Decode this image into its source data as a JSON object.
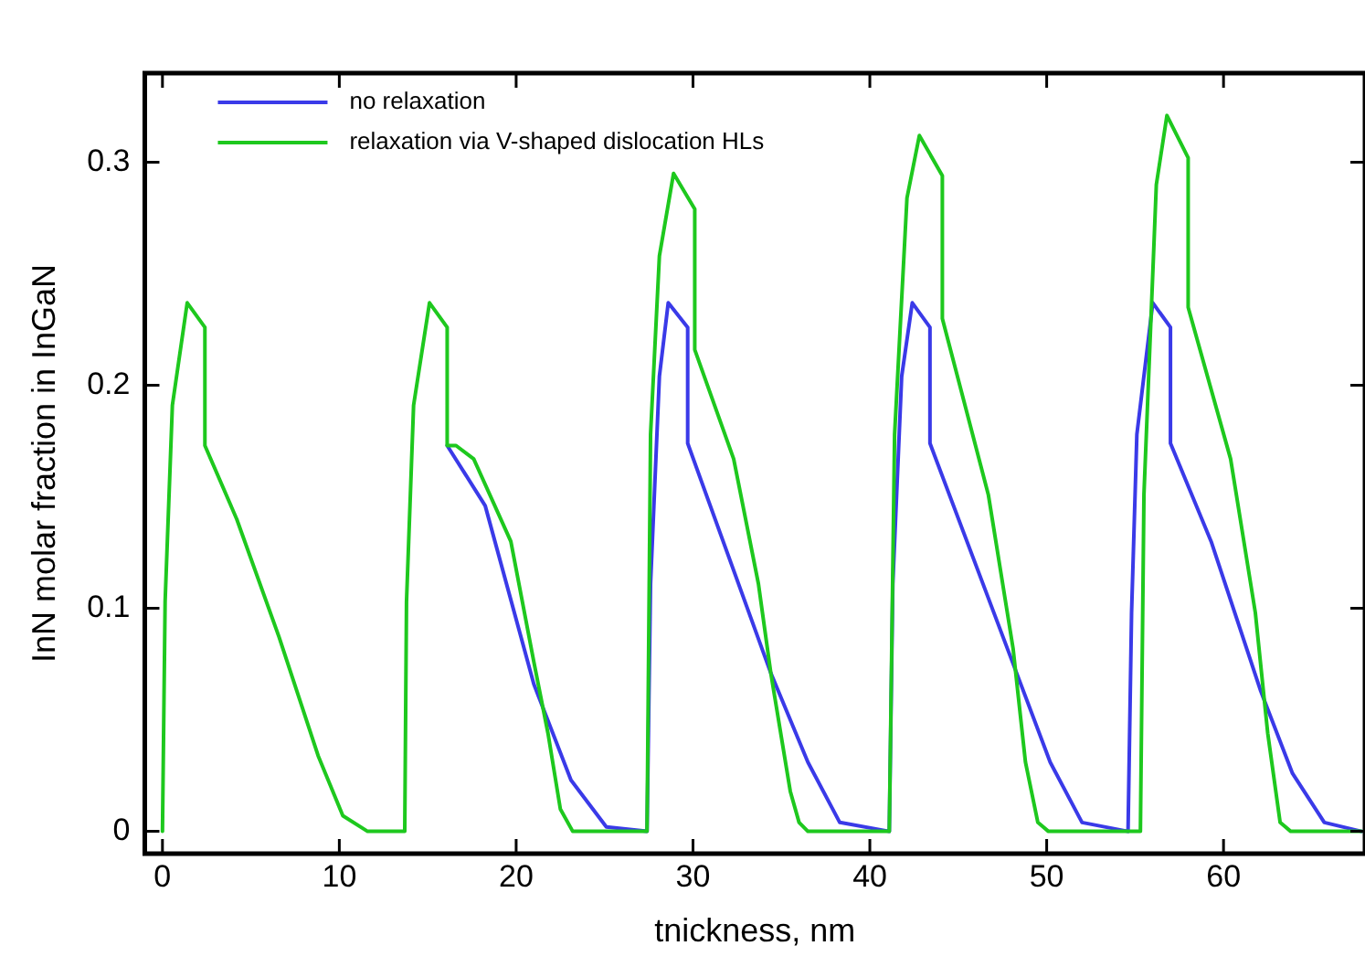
{
  "chart_data": {
    "type": "line",
    "xlabel": "tnickness, nm",
    "ylabel": "InN molar fraction in InGaN",
    "xlim": [
      -1,
      68
    ],
    "ylim": [
      -0.01,
      0.34
    ],
    "xticks": [
      0,
      10,
      20,
      30,
      40,
      50,
      60
    ],
    "yticks": [
      0,
      0.1,
      0.2,
      0.3
    ],
    "grid": false,
    "legend": "top left",
    "marker": "none",
    "line_style": "solid",
    "series": [
      {
        "name": "no relaxation",
        "color": "#3a3ae8",
        "x": [
          16.1,
          18.25,
          21.0,
          23.1,
          25.1,
          27.4,
          27.6,
          28.1,
          28.6,
          29.7,
          29.7,
          34.4,
          36.5,
          38.3,
          41.1,
          41.3,
          41.8,
          42.4,
          43.4,
          43.4,
          48.3,
          50.2,
          52.0,
          54.6,
          54.8,
          55.1,
          56.0,
          57.0,
          57.0,
          59.3,
          62.1,
          63.9,
          65.7,
          67.8
        ],
        "values": [
          0.173,
          0.146,
          0.066,
          0.023,
          0.002,
          0,
          0.111,
          0.204,
          0.237,
          0.226,
          0.174,
          0.071,
          0.031,
          0.004,
          0,
          0.111,
          0.204,
          0.237,
          0.226,
          0.174,
          0.071,
          0.031,
          0.004,
          0,
          0.098,
          0.178,
          0.237,
          0.226,
          0.174,
          0.13,
          0.063,
          0.026,
          0.004,
          0
        ]
      },
      {
        "name": "relaxation via V-shaped dislocation HLs",
        "color": "#1ec81e",
        "x": [
          0,
          0.15,
          0.56,
          1.4,
          2.4,
          2.4,
          4.2,
          6.6,
          8.8,
          10.2,
          11.6,
          13.7,
          13.8,
          14.2,
          15.1,
          16.1,
          16.1,
          16.6,
          17.6,
          19.7,
          21.0,
          21.8,
          22.5,
          23.2,
          27.4,
          27.6,
          28.1,
          28.9,
          30.1,
          30.1,
          32.3,
          33.7,
          34.4,
          35.5,
          36.0,
          36.5,
          41.1,
          41.4,
          42.1,
          42.8,
          44.1,
          44.1,
          46.7,
          48.1,
          48.8,
          49.5,
          50.1,
          55.3,
          55.5,
          56.2,
          56.8,
          58.0,
          58.0,
          60.4,
          61.8,
          62.5,
          63.2,
          63.8,
          67.8
        ],
        "values": [
          0,
          0.103,
          0.191,
          0.237,
          0.226,
          0.173,
          0.14,
          0.087,
          0.034,
          0.007,
          0,
          0,
          0.103,
          0.191,
          0.237,
          0.226,
          0.173,
          0.173,
          0.167,
          0.13,
          0.076,
          0.044,
          0.01,
          0,
          0,
          0.178,
          0.258,
          0.295,
          0.279,
          0.216,
          0.167,
          0.111,
          0.071,
          0.018,
          0.004,
          0,
          0,
          0.178,
          0.284,
          0.312,
          0.294,
          0.23,
          0.151,
          0.082,
          0.031,
          0.004,
          0,
          0,
          0.151,
          0.29,
          0.321,
          0.302,
          0.235,
          0.167,
          0.098,
          0.044,
          0.004,
          0,
          0
        ]
      }
    ]
  }
}
